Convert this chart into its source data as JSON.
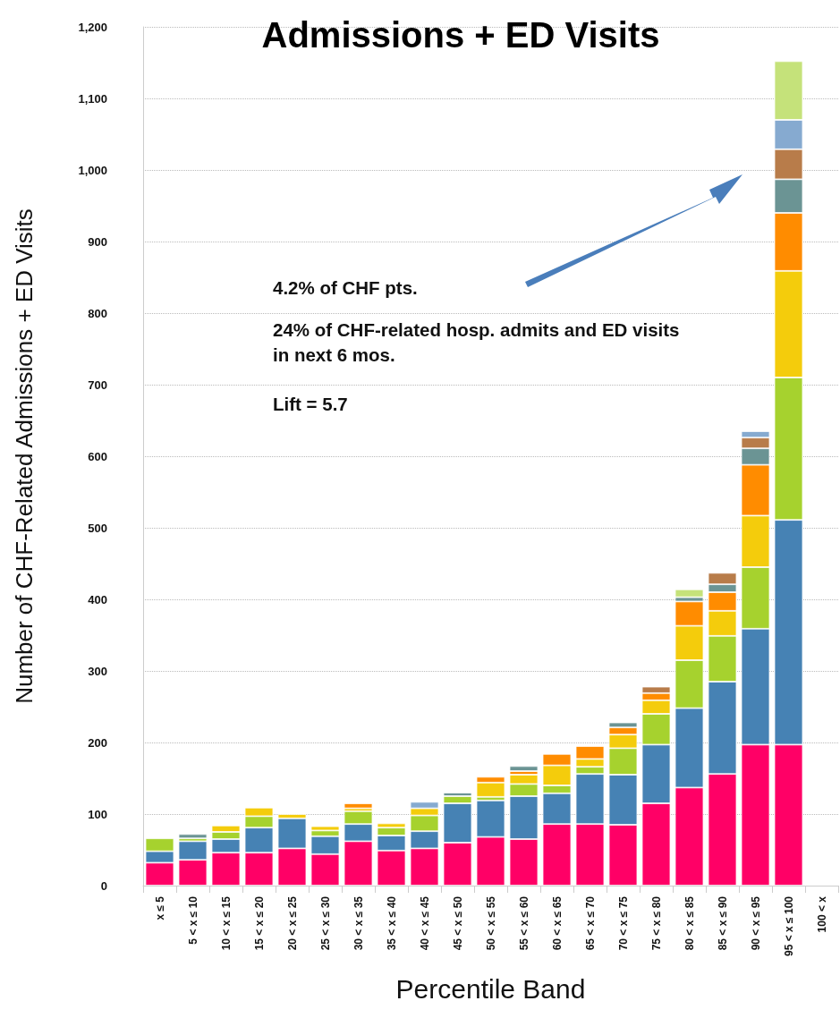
{
  "chart_data": {
    "type": "bar",
    "stacked": true,
    "title": "Admissions + ED Visits",
    "xlabel": "Percentile Band",
    "ylabel": "Number of CHF-Related Admissions + ED Visits",
    "categories": [
      "x ≤ 5",
      "5 < x ≤ 10",
      "10 < x ≤ 15",
      "15 < x ≤ 20",
      "20 < x ≤ 25",
      "25 < x ≤ 30",
      "30 < x ≤ 35",
      "35 < x ≤ 40",
      "40 < x ≤ 45",
      "45 < x ≤ 50",
      "50 < x ≤ 55",
      "55 < x ≤ 60",
      "60 < x ≤ 65",
      "65 < x ≤ 70",
      "70 < x ≤ 75",
      "75 < x ≤ 80",
      "80 < x ≤ 85",
      "85 < x ≤ 90",
      "90 < x ≤ 95",
      "95 < x ≤ 100",
      "100 < x"
    ],
    "series": [
      {
        "color": "#ff0066",
        "values": [
          32,
          36,
          46,
          46,
          52,
          44,
          62,
          49,
          52,
          60,
          68,
          65,
          86,
          86,
          85,
          115,
          137,
          156,
          197,
          197,
          null
        ]
      },
      {
        "color": "#4682b4",
        "values": [
          16,
          26,
          19,
          35,
          42,
          25,
          24,
          21,
          24,
          55,
          51,
          60,
          43,
          70,
          70,
          82,
          111,
          129,
          162,
          314,
          null
        ]
      },
      {
        "color": "#a6d22e",
        "values": [
          18,
          4,
          10,
          16,
          null,
          8,
          18,
          11,
          22,
          10,
          5,
          17,
          11,
          10,
          37,
          43,
          67,
          64,
          86,
          199,
          null
        ]
      },
      {
        "color": "#f4cc0c",
        "values": [
          null,
          null,
          9,
          12,
          6,
          6,
          4,
          6,
          10,
          null,
          20,
          13,
          28,
          11,
          19,
          19,
          48,
          35,
          72,
          149,
          null
        ]
      },
      {
        "color": "#ff8c00",
        "values": [
          null,
          null,
          null,
          null,
          null,
          null,
          7,
          null,
          null,
          null,
          8,
          5,
          16,
          18,
          10,
          10,
          34,
          26,
          71,
          81,
          null
        ]
      },
      {
        "color": "#6b9494",
        "values": [
          null,
          6,
          null,
          null,
          null,
          null,
          null,
          null,
          null,
          5,
          null,
          7,
          null,
          null,
          7,
          null,
          6,
          11,
          23,
          47,
          null
        ]
      },
      {
        "color": "#b87c4a",
        "values": [
          null,
          null,
          null,
          null,
          null,
          null,
          null,
          null,
          null,
          null,
          null,
          null,
          null,
          null,
          null,
          9,
          null,
          16,
          15,
          42,
          null
        ]
      },
      {
        "color": "#86aad0",
        "values": [
          null,
          null,
          null,
          null,
          null,
          null,
          null,
          null,
          9,
          null,
          null,
          null,
          null,
          null,
          null,
          null,
          null,
          null,
          9,
          41,
          null
        ]
      },
      {
        "color": "#c5e27a",
        "values": [
          null,
          null,
          null,
          null,
          null,
          null,
          null,
          null,
          null,
          null,
          null,
          null,
          null,
          null,
          null,
          null,
          11,
          null,
          null,
          82,
          null
        ]
      }
    ],
    "ylim": [
      0,
      1200
    ],
    "yticks": [
      0,
      100,
      200,
      300,
      400,
      500,
      600,
      700,
      800,
      900,
      {
        "value": 1000,
        "label": "1,000"
      },
      {
        "value": 1100,
        "label": "1,100"
      },
      {
        "value": 1200,
        "label": "1,200"
      }
    ],
    "grid": "y",
    "annotations": [
      "4.2% of CHF pts.",
      "24% of CHF-related hosp. admits and ED visits in next 6 mos.",
      "Lift = 5.7"
    ]
  }
}
